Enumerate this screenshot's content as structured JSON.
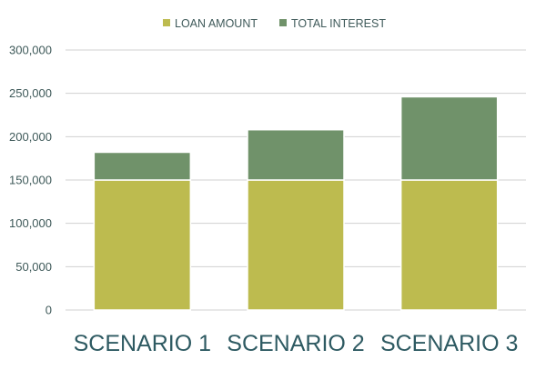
{
  "chart_data": {
    "type": "bar",
    "stacked": true,
    "categories": [
      "SCENARIO 1",
      "SCENARIO 2",
      "SCENARIO 3"
    ],
    "series": [
      {
        "name": "LOAN AMOUNT",
        "color": "#bdbb4f",
        "values": [
          150000,
          150000,
          150000
        ]
      },
      {
        "name": "TOTAL INTEREST",
        "color": "#70926a",
        "values": [
          32000,
          58000,
          96000
        ]
      }
    ],
    "yticks": [
      "0",
      "50,000",
      "100,000",
      "150,000",
      "200,000",
      "250,000",
      "300,000"
    ],
    "ylim": [
      0,
      300000
    ],
    "grid": true,
    "legend_position": "top"
  }
}
